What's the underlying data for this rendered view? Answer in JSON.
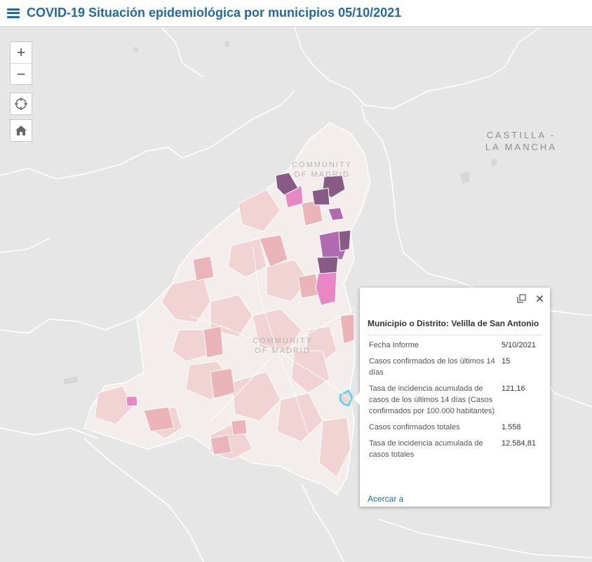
{
  "header": {
    "title": "COVID-19 Situación epidemiológica por municipios 05/10/2021"
  },
  "map": {
    "labels": {
      "castilla_line1": "CASTILLA -",
      "castilla_line2": "LA MANCHA",
      "community_north_line1": "COMMUNITY",
      "community_north_line2": "OF MADRID",
      "community_center_line1": "COMMUNITY",
      "community_center_line2": "OF MADRID"
    },
    "colors": {
      "background": "#e6e6e6",
      "region_base": "#f3eeec",
      "choropleth_light": "#f2d3d3",
      "choropleth_mid": "#eab4b8",
      "choropleth_pink": "#e987c4",
      "choropleth_purple": "#b06ab0",
      "choropleth_dark": "#8a5a86",
      "selected_outline": "#4fd6f0",
      "road": "#ffffff"
    }
  },
  "controls": {
    "zoom_in_label": "+",
    "zoom_out_label": "−",
    "locate_icon": "crosshair-icon",
    "home_icon": "home-icon"
  },
  "popup": {
    "title": "Municipio o Distrito: Velilla de San Antonio",
    "rows": [
      {
        "label": "Fecha Informe",
        "value": "5/10/2021"
      },
      {
        "label": "Casos confirmados de los últimos 14 días",
        "value": "15"
      },
      {
        "label": "Tasa de incidencia acumulada de casos de los últimos 14 días (Casos confirmados por 100.000 habitantes)",
        "value": "121,16"
      },
      {
        "label": "Casos confirmados totales",
        "value": "1.558"
      },
      {
        "label": "Tasa de incidencia acumulada de casos totales",
        "value": "12.584,81"
      }
    ],
    "zoom_link": "Acercar a",
    "maximize_icon": "maximize-icon",
    "close_icon": "close-icon"
  }
}
